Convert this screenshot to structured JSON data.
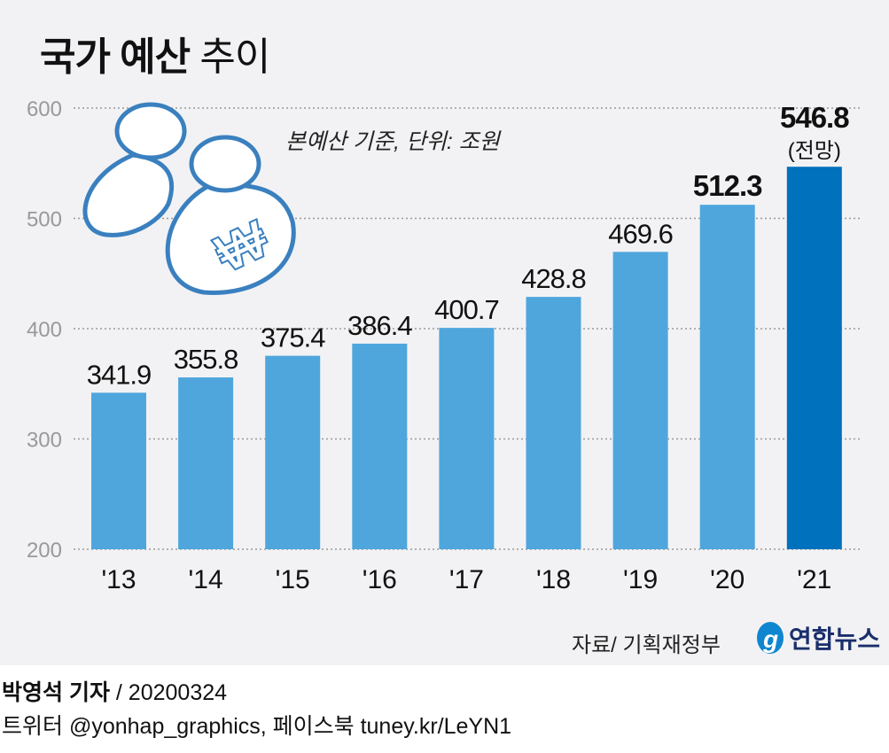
{
  "title": {
    "bold": "국가 예산",
    "light": "추이"
  },
  "note": "본예산 기준, 단위: 조원",
  "source": "자료/ 기획재정부",
  "logo": "연합뉴스",
  "footer": {
    "author": "박영석 기자",
    "date": "/  20200324",
    "social": "트위터 @yonhap_graphics, 페이스북 tuney.kr/LeYN1"
  },
  "colors": {
    "bar": "#4fa6dd",
    "highlight": "#0071bc",
    "grid": "#999999",
    "background": "#f2f2f4"
  },
  "chart_data": {
    "type": "bar",
    "categories": [
      "'13",
      "'14",
      "'15",
      "'16",
      "'17",
      "'18",
      "'19",
      "'20",
      "'21"
    ],
    "values": [
      341.9,
      355.8,
      375.4,
      386.4,
      400.7,
      428.8,
      469.6,
      512.3,
      546.8
    ],
    "labels": [
      "341.9",
      "355.8",
      "375.4",
      "386.4",
      "400.7",
      "428.8",
      "469.6",
      "512.3",
      "546.8"
    ],
    "highlight_note": "(전망)",
    "ylim": [
      200,
      600
    ],
    "yticks": [
      200,
      300,
      400,
      500,
      600
    ],
    "grid": true
  }
}
